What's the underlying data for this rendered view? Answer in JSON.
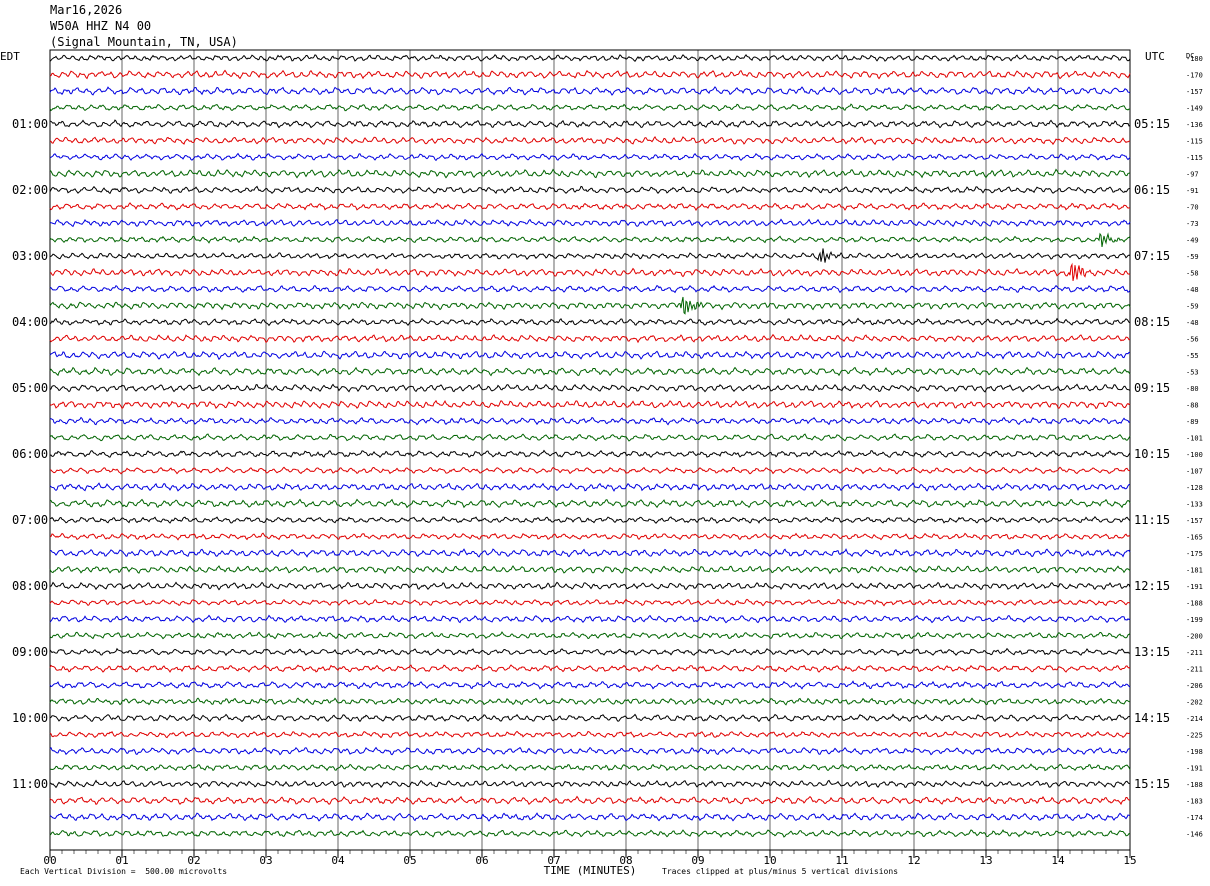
{
  "header": {
    "date": "Mar16,2026",
    "station": "W50A HHZ N4 00",
    "location": "(Signal Mountain, TN, USA)"
  },
  "chart_data": {
    "type": "line",
    "subtype": "helicorder",
    "left_axis_title": "EDT",
    "right_axis_title": "UTC",
    "dc_title": "DC",
    "xlabel": "TIME (MINUTES)",
    "x_ticks": [
      "00",
      "01",
      "02",
      "03",
      "04",
      "05",
      "06",
      "07",
      "08",
      "09",
      "10",
      "11",
      "12",
      "13",
      "14",
      "15"
    ],
    "xlim": [
      0,
      15
    ],
    "rows_per_hour": 4,
    "trace_colors": [
      "#000000",
      "#e00000",
      "#0000e0",
      "#006400"
    ],
    "left_hour_labels": [
      "01:00",
      "02:00",
      "03:00",
      "04:00",
      "05:00",
      "06:00",
      "07:00",
      "08:00",
      "09:00",
      "10:00",
      "11:00"
    ],
    "right_hour_labels": [
      "05:15",
      "06:15",
      "07:15",
      "08:15",
      "09:15",
      "10:15",
      "11:15",
      "12:15",
      "13:15",
      "14:15",
      "15:15"
    ],
    "dc_offsets": [
      "-180",
      "-170",
      "-157",
      "-149",
      "-136",
      "-115",
      "-115",
      "-97",
      "-91",
      "-70",
      "-73",
      "-49",
      "-59",
      "-58",
      "-48",
      "-59",
      "-48",
      "-56",
      "-55",
      "-53",
      "-80",
      "-88",
      "-89",
      "-101",
      "-100",
      "-107",
      "-128",
      "-133",
      "-157",
      "-165",
      "-175",
      "-181",
      "-191",
      "-188",
      "-199",
      "-200",
      "-211",
      "-211",
      "-206",
      "-202",
      "-214",
      "-225",
      "-198",
      "-191",
      "-188",
      "-183",
      "-174",
      "-146"
    ],
    "events": [
      {
        "row": 11,
        "minute": 14.6,
        "amplitude": "medium"
      },
      {
        "row": 12,
        "minute": 10.7,
        "amplitude": "medium"
      },
      {
        "row": 13,
        "minute": 14.2,
        "amplitude": "large"
      },
      {
        "row": 15,
        "minute": 8.8,
        "amplitude": "large"
      }
    ],
    "footer_left": "Each Vertical Division =  500.00 microvolts",
    "footer_right": "Traces clipped at plus/minus 5 vertical divisions"
  }
}
